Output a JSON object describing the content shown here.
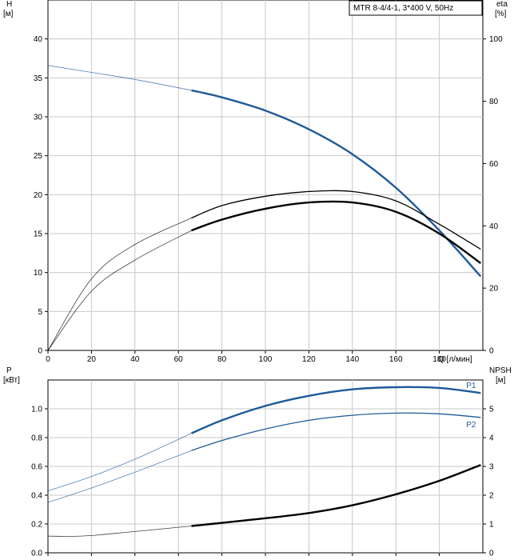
{
  "chart_data": [
    {
      "type": "line",
      "title": "MTR 8-4/4-1, 3*400 V, 50Hz",
      "xlabel": "Q [л/мин]",
      "xticks": [
        "0",
        "20",
        "40",
        "60",
        "80",
        "100",
        "120",
        "140",
        "160",
        "180"
      ],
      "xlim": [
        0,
        200
      ],
      "grid": true,
      "left_axis": {
        "label_line1": "H",
        "label_line2": "[м]",
        "ylim": [
          0,
          45
        ],
        "ticks": [
          "0",
          "5",
          "10",
          "15",
          "20",
          "25",
          "30",
          "35",
          "40"
        ]
      },
      "right_axis": {
        "label_line1": "eta",
        "label_line2": "[%]",
        "ylim": [
          0,
          112.5
        ],
        "ticks": [
          "0",
          "20",
          "40",
          "60",
          "80",
          "100"
        ]
      },
      "series": [
        {
          "name": "",
          "axis": "left",
          "color": "#1f5a99",
          "x": [
            0,
            20,
            40,
            66,
            80,
            100,
            120,
            140,
            160,
            180,
            199
          ],
          "y": [
            36.6,
            35.7,
            34.8,
            33.4,
            32.5,
            30.8,
            28.4,
            25.2,
            20.9,
            15.4,
            9.5
          ]
        },
        {
          "name": "",
          "axis": "right",
          "color": "#000000",
          "x": [
            0,
            20,
            40,
            66,
            80,
            100,
            120,
            140,
            160,
            180,
            199
          ],
          "y": [
            0,
            19,
            29,
            38.5,
            42,
            45.5,
            47.5,
            47.5,
            44.5,
            37.5,
            28
          ]
        },
        {
          "name": "",
          "axis": "right",
          "color": "#000000",
          "x": [
            0,
            20,
            40,
            66,
            80,
            100,
            120,
            140,
            160,
            180,
            199
          ],
          "y": [
            0,
            23,
            34,
            42.5,
            46.5,
            49.5,
            51,
            51,
            48,
            40.5,
            32.5
          ]
        }
      ]
    },
    {
      "type": "line",
      "xlim": [
        0,
        200
      ],
      "grid": true,
      "left_axis": {
        "label_line1": "P",
        "label_line2": "[кВт]",
        "ylim": [
          0,
          1.2
        ],
        "ticks": [
          "0.0",
          "0.2",
          "0.4",
          "0.6",
          "0.8",
          "1.0"
        ]
      },
      "right_axis": {
        "label_line1": "NPSH",
        "label_line2": "[м]",
        "ylim": [
          0,
          6
        ],
        "ticks": [
          "0",
          "1",
          "2",
          "3",
          "4",
          "5"
        ]
      },
      "series": [
        {
          "name": "P1",
          "axis": "left",
          "color": "#1f5a99",
          "x": [
            0,
            20,
            40,
            66,
            80,
            100,
            120,
            140,
            160,
            180,
            199
          ],
          "y": [
            0.43,
            0.53,
            0.65,
            0.83,
            0.92,
            1.02,
            1.09,
            1.135,
            1.15,
            1.145,
            1.11
          ]
        },
        {
          "name": "P2",
          "axis": "left",
          "color": "#1f5a99",
          "x": [
            0,
            20,
            40,
            66,
            80,
            100,
            120,
            140,
            160,
            180,
            199
          ],
          "y": [
            0.35,
            0.45,
            0.56,
            0.71,
            0.78,
            0.86,
            0.92,
            0.955,
            0.97,
            0.965,
            0.94
          ]
        },
        {
          "name": "",
          "axis": "right",
          "color": "#000000",
          "x": [
            0,
            10,
            20,
            40,
            66,
            80,
            100,
            120,
            140,
            160,
            180,
            199
          ],
          "y": [
            0.58,
            0.57,
            0.6,
            0.74,
            0.93,
            1.04,
            1.2,
            1.38,
            1.65,
            2.03,
            2.5,
            3.05
          ]
        }
      ]
    }
  ]
}
